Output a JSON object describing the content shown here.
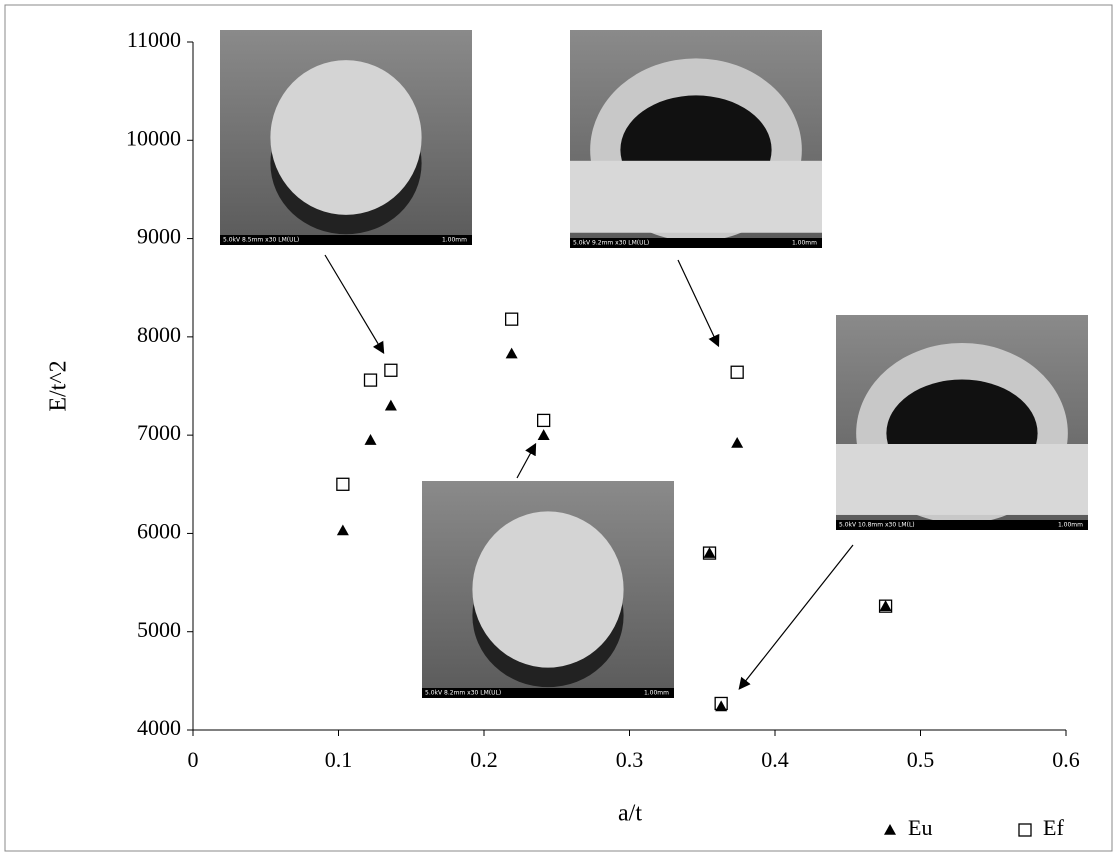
{
  "chart_data": {
    "type": "scatter",
    "x_label": "a/t",
    "y_label": "E/t^2",
    "xlim": [
      0,
      0.6
    ],
    "xticks": [
      0,
      0.1,
      0.2,
      0.3,
      0.4,
      0.5,
      0.6
    ],
    "ylim": [
      4000,
      11000
    ],
    "yticks": [
      4000,
      5000,
      6000,
      7000,
      8000,
      9000,
      10000,
      11000
    ],
    "grid": false,
    "legend": "bottom-right",
    "series": [
      {
        "name": "Eu",
        "marker": "triangle",
        "color": "#000000",
        "x": [
          0.103,
          0.122,
          0.136,
          0.219,
          0.241,
          0.355,
          0.363,
          0.374,
          0.476
        ],
        "values": [
          6030,
          6950,
          7300,
          7830,
          7000,
          5800,
          4240,
          6920,
          5260
        ]
      },
      {
        "name": "Ef",
        "marker": "square",
        "color": "#000000",
        "x": [
          0.103,
          0.122,
          0.136,
          0.219,
          0.241,
          0.355,
          0.363,
          0.374,
          0.476
        ],
        "values": [
          6500,
          7560,
          7660,
          8180,
          7150,
          5800,
          4270,
          7640,
          5260
        ]
      }
    ],
    "insets": [
      {
        "caption": "5.0kV 8.5mm x30 LM(UL)",
        "scale": "1.00mm"
      },
      {
        "caption": "5.0kV 9.2mm x30 LM(UL)",
        "scale": "1.00mm"
      },
      {
        "caption": "5.0kV 8.2mm x30 LM(UL)",
        "scale": "1.00mm"
      },
      {
        "caption": "5.0kV 10.8mm x30 LM(L)",
        "scale": "1.00mm"
      }
    ]
  }
}
